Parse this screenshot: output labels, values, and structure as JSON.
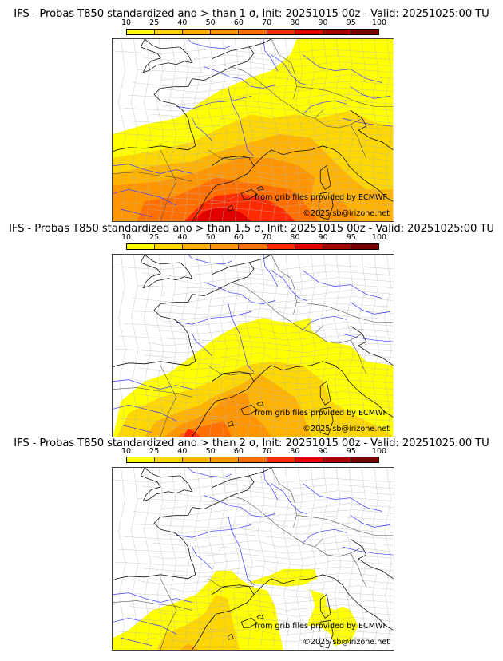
{
  "panels": [
    {
      "title": "IFS - Probas T850  standardized ano > than 1 σ, Init: 20251015 00z - Valid: 20251025:00 TU",
      "threshold_sigma": 1,
      "credit_source": "from grib files provided by ECMWF",
      "credit_copyright": "©2025 sb@irizone.net"
    },
    {
      "title": "IFS - Probas T850  standardized ano > than 1.5 σ, Init: 20251015 00z - Valid: 20251025:00 TU",
      "threshold_sigma": 1.5,
      "credit_source": "from grib files provided by ECMWF",
      "credit_copyright": "©2025 sb@irizone.net"
    },
    {
      "title": "IFS - Probas T850  standardized ano > than 2 σ, Init: 20251015 00z - Valid: 20251025:00 TU",
      "threshold_sigma": 2,
      "credit_source": "from grib files provided by ECMWF",
      "credit_copyright": "©2025 sb@irizone.net"
    }
  ],
  "colorbar": {
    "ticks": [
      "10",
      "25",
      "40",
      "50",
      "60",
      "70",
      "80",
      "90",
      "95",
      "100"
    ],
    "colors": [
      "#ffff00",
      "#ffd700",
      "#ffb300",
      "#ff9500",
      "#ff7000",
      "#ff2a00",
      "#e00000",
      "#a80000",
      "#7a0000"
    ]
  }
}
